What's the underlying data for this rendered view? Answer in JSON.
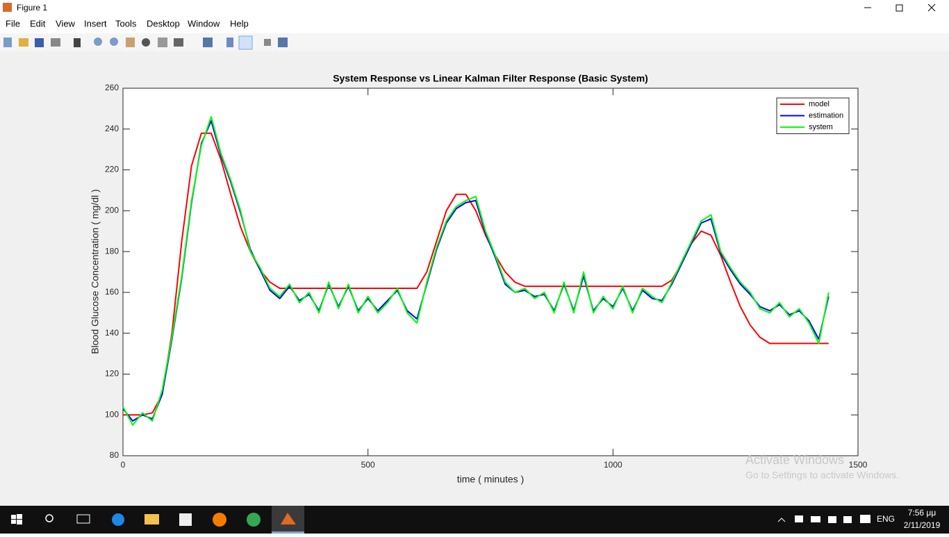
{
  "window": {
    "title": "Figure 1",
    "menu": [
      "File",
      "Edit",
      "View",
      "Insert",
      "Tools",
      "Desktop",
      "Window",
      "Help"
    ]
  },
  "chart_data": {
    "type": "line",
    "title": "System Response vs Linear Kalman Filter Response (Basic System)",
    "x_label": "time ( minutes )",
    "y_label": "Blood Glucose Concentration ( mg/dl )",
    "x": [
      0,
      20,
      40,
      60,
      80,
      100,
      120,
      140,
      160,
      180,
      200,
      220,
      240,
      260,
      280,
      300,
      320,
      340,
      360,
      380,
      400,
      420,
      440,
      460,
      480,
      500,
      520,
      540,
      560,
      580,
      600,
      620,
      640,
      660,
      680,
      700,
      720,
      740,
      760,
      780,
      800,
      820,
      840,
      860,
      880,
      900,
      920,
      940,
      960,
      980,
      1000,
      1020,
      1040,
      1060,
      1080,
      1100,
      1120,
      1140,
      1160,
      1180,
      1200,
      1220,
      1240,
      1260,
      1280,
      1300,
      1320,
      1340,
      1360,
      1380,
      1400,
      1420,
      1440
    ],
    "series": [
      {
        "name": "model",
        "color": "#ff0000",
        "values": [
          100,
          100,
          100,
          101,
          110,
          140,
          185,
          222,
          238,
          238,
          225,
          208,
          192,
          180,
          171,
          165,
          162,
          162,
          162,
          162,
          162,
          162,
          162,
          162,
          162,
          162,
          162,
          162,
          162,
          162,
          162,
          170,
          185,
          200,
          208,
          208,
          200,
          188,
          178,
          170,
          165,
          163,
          163,
          163,
          163,
          163,
          163,
          163,
          163,
          163,
          163,
          163,
          163,
          163,
          163,
          163,
          166,
          174,
          184,
          190,
          188,
          178,
          165,
          153,
          144,
          138,
          135,
          135,
          135,
          135,
          135,
          135,
          135
        ]
      },
      {
        "name": "estimation",
        "color": "#0000ff",
        "values": [
          103,
          97,
          100,
          98,
          110,
          137,
          167,
          204,
          233,
          244,
          227,
          214,
          199,
          181,
          171,
          161,
          157,
          163,
          156,
          159,
          151,
          164,
          153,
          163,
          151,
          157,
          151,
          156,
          161,
          151,
          147,
          164,
          181,
          194,
          201,
          204,
          205,
          189,
          177,
          164,
          160,
          161,
          158,
          159,
          151,
          164,
          151,
          168,
          151,
          157,
          153,
          162,
          151,
          161,
          157,
          156,
          164,
          174,
          184,
          194,
          196,
          179,
          171,
          164,
          159,
          153,
          151,
          154,
          149,
          151,
          146,
          137,
          158
        ]
      },
      {
        "name": "system",
        "color": "#00ff00",
        "values": [
          104,
          95,
          101,
          97,
          112,
          138,
          168,
          205,
          232,
          246,
          228,
          215,
          200,
          180,
          172,
          162,
          158,
          164,
          155,
          160,
          150,
          165,
          152,
          164,
          150,
          158,
          150,
          155,
          162,
          150,
          145,
          165,
          182,
          195,
          202,
          205,
          207,
          190,
          178,
          165,
          160,
          162,
          157,
          160,
          150,
          165,
          150,
          170,
          150,
          158,
          152,
          163,
          150,
          162,
          158,
          155,
          165,
          175,
          185,
          195,
          198,
          180,
          172,
          165,
          160,
          152,
          150,
          155,
          148,
          152,
          145,
          135,
          160
        ]
      }
    ],
    "xlim": [
      0,
      1500
    ],
    "xticks": [
      0,
      500,
      1000,
      1500
    ],
    "ylim": [
      80,
      260
    ],
    "yticks": [
      80,
      100,
      120,
      140,
      160,
      180,
      200,
      220,
      240,
      260
    ],
    "grid": false,
    "legend": "top-right"
  },
  "watermark": {
    "title": "Activate Windows",
    "subtitle": "Go to Settings to activate Windows."
  },
  "taskbar": {
    "language": "ENG",
    "time": "7:56 μμ",
    "date": "2/11/2019"
  }
}
